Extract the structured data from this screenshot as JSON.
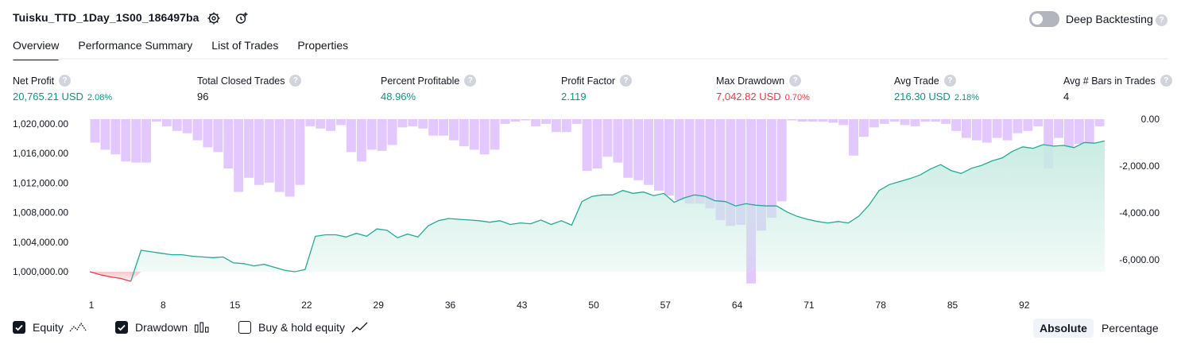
{
  "header": {
    "title": "Tuisku_TTD_1Day_1S00_186497ba",
    "deep_backtesting_label": "Deep Backtesting",
    "deep_backtesting_on": false,
    "help_glyph": "?"
  },
  "tabs": [
    {
      "label": "Overview",
      "active": true
    },
    {
      "label": "Performance Summary",
      "active": false
    },
    {
      "label": "List of Trades",
      "active": false
    },
    {
      "label": "Properties",
      "active": false
    }
  ],
  "metrics": {
    "net_profit": {
      "label": "Net Profit",
      "value": "20,765.21 USD",
      "pct": "2.08%"
    },
    "total_closed_trades": {
      "label": "Total Closed Trades",
      "value": "96"
    },
    "percent_profitable": {
      "label": "Percent Profitable",
      "value": "48.96%"
    },
    "profit_factor": {
      "label": "Profit Factor",
      "value": "2.119"
    },
    "max_drawdown": {
      "label": "Max Drawdown",
      "value": "7,042.82 USD",
      "pct": "0.70%"
    },
    "avg_trade": {
      "label": "Avg Trade",
      "value": "216.30 USD",
      "pct": "2.18%"
    },
    "avg_bars": {
      "label": "Avg # Bars in Trades",
      "value": "4"
    }
  },
  "colors": {
    "equity_line": "#22ab94",
    "equity_fill": "#c7ebe1",
    "equity_below_line": "#f23645",
    "drawdown_bar": "#e1c4ff",
    "drawdown_overlap": "#b3b5e6",
    "positive": "#089981",
    "negative": "#f23645"
  },
  "chart_data": {
    "type": "area",
    "x_ticks": [
      "1",
      "8",
      "15",
      "22",
      "29",
      "36",
      "43",
      "50",
      "57",
      "64",
      "71",
      "78",
      "85",
      "92"
    ],
    "equity_axis_ticks": [
      "1,020,000.00",
      "1,016,000.00",
      "1,012,000.00",
      "1,008,000.00",
      "1,004,000.00",
      "1,000,000.00"
    ],
    "equity_ylim": [
      998000,
      1021000
    ],
    "drawdown_axis_ticks": [
      "0.00",
      "-2,000.00",
      "-4,000.00",
      "-6,000.00"
    ],
    "drawdown_ylim": [
      -7000,
      0
    ],
    "series": [
      {
        "name": "Equity",
        "x": [
          1,
          2,
          3,
          4,
          5,
          6,
          7,
          8,
          9,
          10,
          11,
          12,
          13,
          14,
          15,
          16,
          17,
          18,
          19,
          20,
          21,
          22,
          23,
          24,
          25,
          26,
          27,
          28,
          29,
          30,
          31,
          32,
          33,
          34,
          35,
          36,
          37,
          38,
          39,
          40,
          41,
          42,
          43,
          44,
          45,
          46,
          47,
          48,
          49,
          50,
          51,
          52,
          53,
          54,
          55,
          56,
          57,
          58,
          59,
          60,
          61,
          62,
          63,
          64,
          65,
          66,
          67,
          68,
          69,
          70,
          71,
          72,
          73,
          74,
          75,
          76,
          77,
          78,
          79,
          80,
          81,
          82,
          83,
          84,
          85,
          86,
          87,
          88,
          89,
          90,
          91,
          92,
          93,
          94,
          95,
          96,
          97,
          98,
          99,
          100
        ],
        "values": [
          1000000,
          999600,
          999300,
          999100,
          998700,
          1002900,
          1002700,
          1002500,
          1002300,
          1002300,
          1002100,
          1002000,
          1001900,
          1002000,
          1001200,
          1001100,
          1000800,
          1001000,
          1000600,
          1000200,
          1000000,
          1000300,
          1004800,
          1005000,
          1005000,
          1004700,
          1005200,
          1004800,
          1005800,
          1005600,
          1004600,
          1005100,
          1004700,
          1006200,
          1006900,
          1007200,
          1007100,
          1007000,
          1006900,
          1006700,
          1006900,
          1006400,
          1006600,
          1006500,
          1007000,
          1006400,
          1006900,
          1006300,
          1009500,
          1010200,
          1010400,
          1010400,
          1011000,
          1010600,
          1010800,
          1010300,
          1010600,
          1009400,
          1010000,
          1010400,
          1010200,
          1009600,
          1009500,
          1008900,
          1009200,
          1009000,
          1008900,
          1008900,
          1008100,
          1007500,
          1007100,
          1006800,
          1006600,
          1006800,
          1006600,
          1007500,
          1009000,
          1011000,
          1011800,
          1012200,
          1012600,
          1013100,
          1013900,
          1014500,
          1013700,
          1013300,
          1014000,
          1014400,
          1015000,
          1015400,
          1016300,
          1016900,
          1016700,
          1017200,
          1017000,
          1017100,
          1016800,
          1017500,
          1017400,
          1017700
        ]
      },
      {
        "name": "Drawdown",
        "x": [
          1,
          2,
          3,
          4,
          5,
          6,
          7,
          8,
          9,
          10,
          11,
          12,
          13,
          14,
          15,
          16,
          17,
          18,
          19,
          20,
          21,
          22,
          23,
          24,
          25,
          26,
          27,
          28,
          29,
          30,
          31,
          32,
          33,
          34,
          35,
          36,
          37,
          38,
          39,
          40,
          41,
          42,
          43,
          44,
          45,
          46,
          47,
          48,
          49,
          50,
          51,
          52,
          53,
          54,
          55,
          56,
          57,
          58,
          59,
          60,
          61,
          62,
          63,
          64,
          65,
          66,
          67,
          68,
          69,
          70,
          71,
          72,
          73,
          74,
          75,
          76,
          77,
          78,
          79,
          80,
          81,
          82,
          83,
          84,
          85,
          86,
          87,
          88,
          89,
          90,
          91,
          92,
          93,
          94,
          95,
          96,
          97,
          98,
          99,
          100
        ],
        "values": [
          -1000,
          -1300,
          -1500,
          -1800,
          -1850,
          -1850,
          -100,
          -300,
          -500,
          -600,
          -900,
          -1200,
          -1400,
          -2100,
          -3100,
          -2500,
          -2800,
          -2700,
          -3100,
          -3300,
          -2800,
          -300,
          -400,
          -500,
          -250,
          -1400,
          -1800,
          -1300,
          -1350,
          -1100,
          -350,
          -300,
          -400,
          -700,
          -700,
          -900,
          -1150,
          -1300,
          -1500,
          -1300,
          -200,
          -100,
          -50,
          -300,
          -200,
          -550,
          -550,
          -200,
          -2200,
          -2100,
          -1600,
          -1850,
          -2500,
          -2600,
          -2800,
          -3050,
          -3250,
          -3450,
          -3600,
          -3600,
          -3800,
          -4300,
          -4550,
          -4500,
          -7000,
          -4750,
          -4200,
          -3500,
          -50,
          -100,
          -100,
          -100,
          -150,
          -250,
          -1550,
          -750,
          -350,
          -200,
          -100,
          -250,
          -300,
          -100,
          -100,
          -200,
          -500,
          -800,
          -900,
          -1000,
          -800,
          -900,
          -600,
          -500,
          -300,
          -2100,
          -800,
          -1200,
          -1050,
          -1000,
          -300,
          0
        ]
      }
    ],
    "legend": [
      "Equity",
      "Drawdown",
      "Buy & hold equity"
    ]
  },
  "legend_items": [
    {
      "label": "Equity",
      "checked": true
    },
    {
      "label": "Drawdown",
      "checked": true
    },
    {
      "label": "Buy & hold equity",
      "checked": false
    }
  ],
  "scale_toggle": {
    "absolute_label": "Absolute",
    "percentage_label": "Percentage",
    "selected": "Absolute"
  }
}
